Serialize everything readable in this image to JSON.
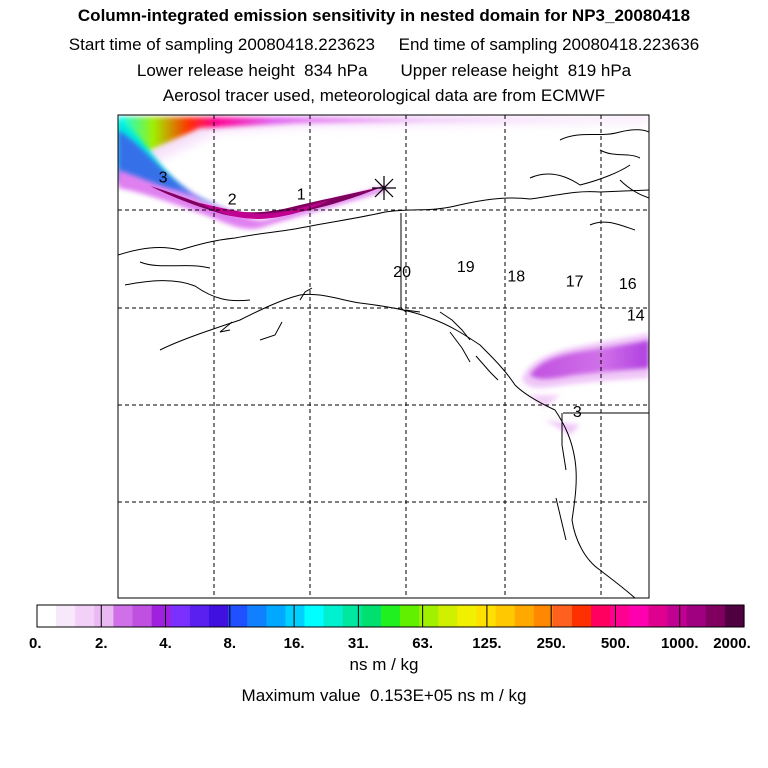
{
  "header": {
    "title": "Column-integrated emission sensitivity in nested domain for NP3_20080418",
    "line1": "Start time of sampling 20080418.223623     End time of sampling 20080418.223636",
    "line2": "Lower release height  834 hPa       Upper release height  819 hPa",
    "line3": "Aerosol tracer used, meteorological data are from ECMWF"
  },
  "map": {
    "release_marker": "asterisk",
    "labels": [
      {
        "text": "3",
        "lon_rel": 0.085,
        "lat_rel": 0.14
      },
      {
        "text": "2",
        "lon_rel": 0.215,
        "lat_rel": 0.185
      },
      {
        "text": "1",
        "lon_rel": 0.345,
        "lat_rel": 0.175
      },
      {
        "text": "20",
        "lon_rel": 0.535,
        "lat_rel": 0.335
      },
      {
        "text": "19",
        "lon_rel": 0.655,
        "lat_rel": 0.325
      },
      {
        "text": "18",
        "lon_rel": 0.75,
        "lat_rel": 0.345
      },
      {
        "text": "17",
        "lon_rel": 0.86,
        "lat_rel": 0.355
      },
      {
        "text": "16",
        "lon_rel": 0.96,
        "lat_rel": 0.36
      },
      {
        "text": "14",
        "lon_rel": 0.975,
        "lat_rel": 0.425
      },
      {
        "text": "3",
        "lon_rel": 0.865,
        "lat_rel": 0.625
      }
    ]
  },
  "colorbar": {
    "ticks": [
      "0.",
      "2.",
      "4.",
      "8.",
      "16.",
      "31.",
      "63.",
      "125.",
      "250.",
      "500.",
      "1000.",
      "2000."
    ],
    "colors": [
      "#ffffff",
      "#f8e8fb",
      "#f2d0f7",
      "#eab8f2",
      "#d070e8",
      "#c050e0",
      "#a020e0",
      "#7a30ff",
      "#5a20f0",
      "#4010e0",
      "#2050ff",
      "#1080ff",
      "#00a8ff",
      "#00d0ff",
      "#00ffff",
      "#00f0d0",
      "#00e8a0",
      "#00e070",
      "#20f020",
      "#60f000",
      "#a0f000",
      "#d0f000",
      "#f0f000",
      "#ffe000",
      "#ffc800",
      "#ffa800",
      "#ff8800",
      "#ff6020",
      "#ff3000",
      "#ff0060",
      "#ff0090",
      "#ff00b0",
      "#e00090",
      "#c00090",
      "#a00080",
      "#800060",
      "#500040"
    ],
    "units": "ns m / kg"
  },
  "footer": {
    "max_value": "Maximum value  0.153E+05 ns m / kg"
  }
}
